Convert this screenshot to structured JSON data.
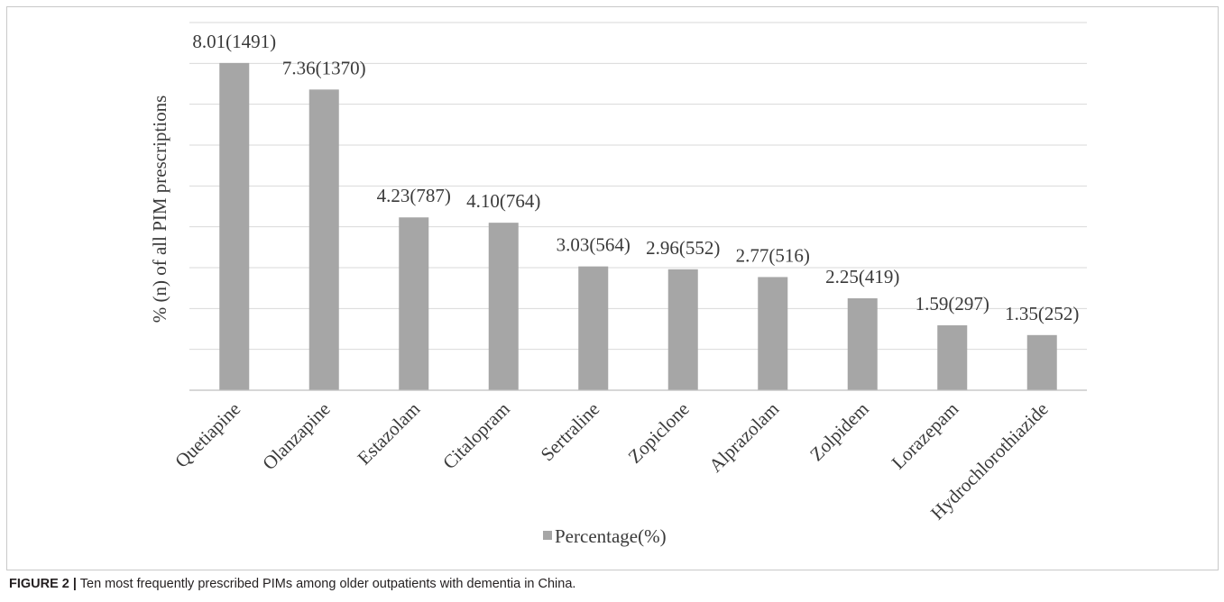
{
  "chart_data": {
    "type": "bar",
    "categories": [
      "Quetiapine",
      "Olanzapine",
      "Estazolam",
      "Citalopram",
      "Sertraline",
      "Zopiclone",
      "Alprazolam",
      "Zolpidem",
      "Lorazepam",
      "Hydrochlorothiazide"
    ],
    "series": [
      {
        "name": "Percentage(%)",
        "values": [
          8.01,
          7.36,
          4.23,
          4.1,
          3.03,
          2.96,
          2.77,
          2.25,
          1.59,
          1.35
        ],
        "data_labels": [
          "8.01(1491)",
          "7.36(1370)",
          "4.23(787)",
          "4.10(764)",
          "3.03(564)",
          "2.96(552)",
          "2.77(516)",
          "2.25(419)",
          "1.59(297)",
          "1.35(252)"
        ]
      }
    ],
    "ylabel": "% (n) of all PIM prescriptions",
    "ylim": [
      0,
      9
    ],
    "y_grid_step": 1,
    "grid": true,
    "y_tick_labels_shown": false,
    "legend_position": "bottom",
    "bar_color": "#a6a6a6",
    "gridline_color": "#d9d9d9",
    "axis_color": "#bfbfbf"
  },
  "caption": {
    "label": "FIGURE 2 |",
    "text": "Ten most frequently prescribed PIMs among older outpatients with dementia in China."
  }
}
